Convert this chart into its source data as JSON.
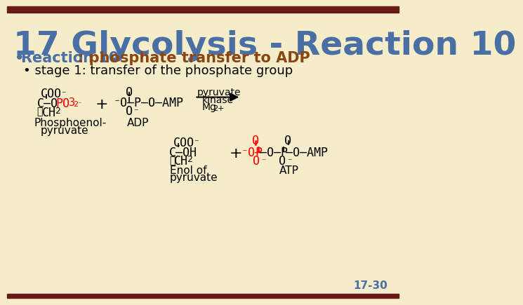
{
  "bg_color": "#F5EDCA",
  "top_bar_color": "#6B1A1A",
  "bottom_bar_color": "#6B1A1A",
  "title_text": "17 Glycolysis - Reaction 10",
  "title_color": "#4A6FA5",
  "bullet1_bold": "Reaction 10",
  "bullet1_bold_color": "#4A6FA5",
  "bullet1_rest": ": phosphate transfer to ADP",
  "bullet1_rest_color": "#8B4513",
  "bullet2_color": "#000000",
  "bullet2_text": "stage 1: transfer of the phosphate group",
  "slide_num": "17-30",
  "slide_num_color": "#4A6FA5"
}
